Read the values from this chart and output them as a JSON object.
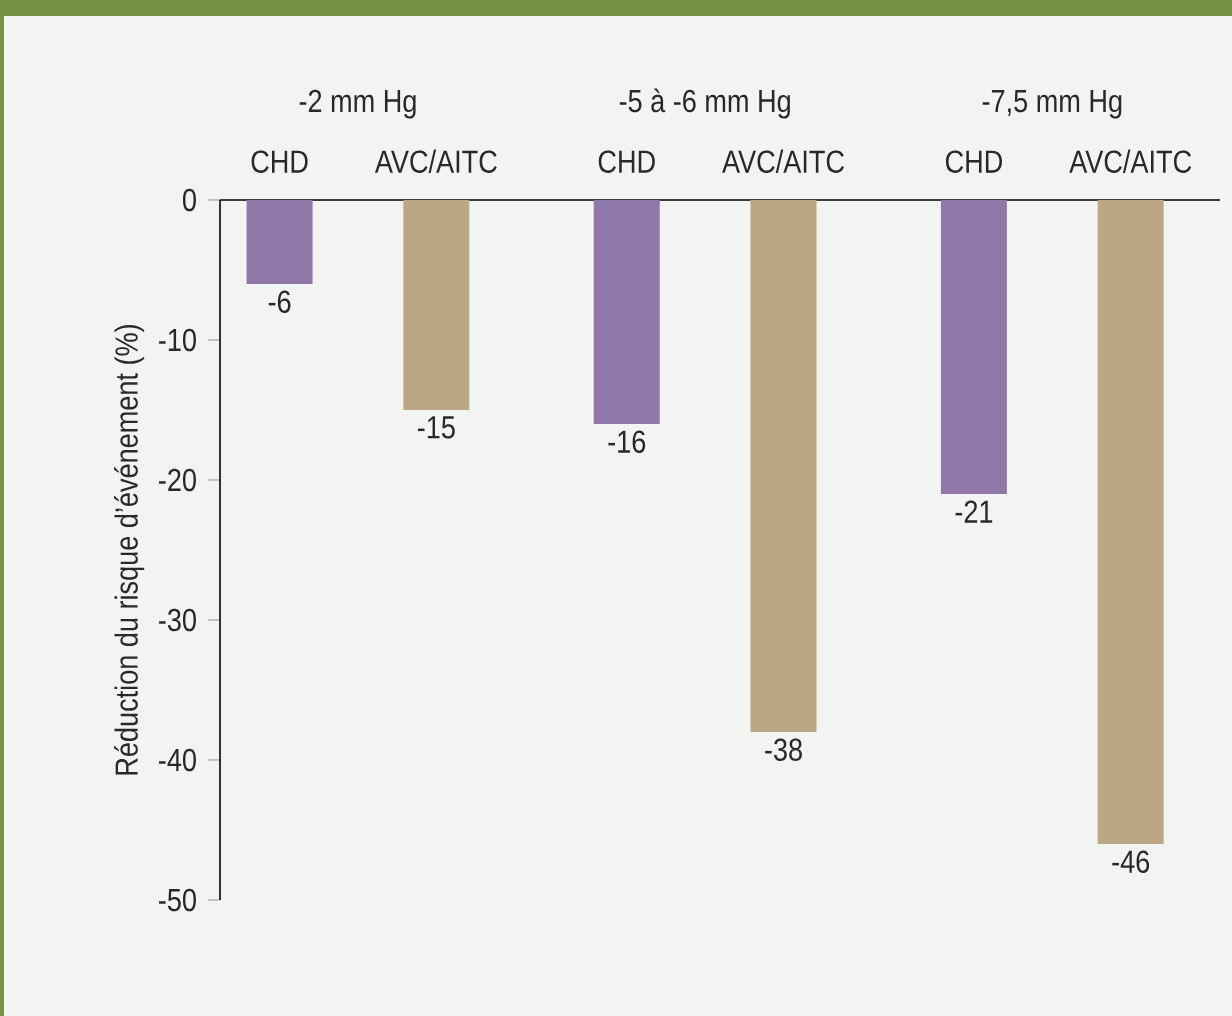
{
  "chart_data": {
    "type": "bar",
    "ylabel": "Réduction du risque d’événement (%)",
    "categories": [
      "CHD",
      "AVC/AITC",
      "CHD",
      "AVC/AITC",
      "CHD",
      "AVC/AITC"
    ],
    "values": [
      -6,
      -15,
      -16,
      -38,
      -21,
      -46
    ],
    "colors": [
      "#8f77a8",
      "#bba785",
      "#8f77a8",
      "#bba785",
      "#8f77a8",
      "#bba785"
    ],
    "ylim": [
      -50,
      0
    ],
    "yticks": [
      0,
      -10,
      -20,
      -30,
      -40,
      -50
    ],
    "data_labels": true,
    "annotations": [
      "-2 mm Hg",
      "-5 à -6 mm Hg",
      "-7,5 mm Hg"
    ]
  }
}
